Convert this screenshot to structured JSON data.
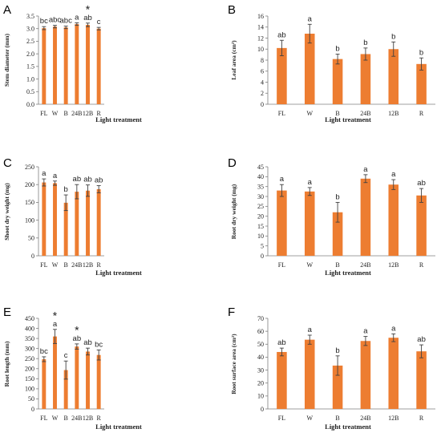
{
  "colors": {
    "bar": "#ED7D31",
    "axis": "#7F7F7F",
    "error": "#404040"
  },
  "chart_data": [
    {
      "type": "bar",
      "panel": "A",
      "categories": [
        "FL",
        "W",
        "B",
        "24B",
        "12B",
        "R"
      ],
      "values": [
        3.02,
        3.08,
        3.05,
        3.18,
        3.15,
        3.0
      ],
      "errors": [
        0.06,
        0.05,
        0.05,
        0.05,
        0.07,
        0.05
      ],
      "sig_letters": [
        "bc",
        "abc",
        "abc",
        "a",
        "ab",
        "c"
      ],
      "stars": [
        false,
        false,
        false,
        false,
        true,
        false
      ],
      "xlabel": "Light treatment",
      "ylabel": "Stem diameter (mm)",
      "ylim": [
        0,
        3.5
      ],
      "yticks": [
        "0.0",
        "0.5",
        "1.0",
        "1.5",
        "2.0",
        "2.5",
        "3.0",
        "3.5"
      ]
    },
    {
      "type": "bar",
      "panel": "B",
      "categories": [
        "FL",
        "W",
        "B",
        "24B",
        "12B",
        "R"
      ],
      "values": [
        10.2,
        12.8,
        8.2,
        9.1,
        10.0,
        7.3
      ],
      "errors": [
        1.4,
        1.7,
        0.9,
        1.1,
        1.3,
        1.1
      ],
      "sig_letters": [
        "ab",
        "a",
        "b",
        "b",
        "b",
        "b"
      ],
      "stars": [
        false,
        false,
        false,
        false,
        false,
        false
      ],
      "xlabel": "Light treatment",
      "ylabel": "Leaf area (cm²)",
      "ylim": [
        0,
        16
      ],
      "yticks": [
        "0",
        "2",
        "4",
        "6",
        "8",
        "10",
        "12",
        "14",
        "16"
      ]
    },
    {
      "type": "bar",
      "panel": "C",
      "categories": [
        "FL",
        "W",
        "B",
        "24B",
        "12B",
        "R"
      ],
      "values": [
        206,
        204,
        149,
        180,
        183,
        187
      ],
      "errors": [
        10,
        6,
        22,
        20,
        16,
        10
      ],
      "sig_letters": [
        "a",
        "a",
        "b",
        "ab",
        "ab",
        "ab"
      ],
      "stars": [
        false,
        false,
        false,
        false,
        false,
        false
      ],
      "xlabel": "Light treatment",
      "ylabel": "Shoot dry weight (mg)",
      "ylim": [
        0,
        250
      ],
      "yticks": [
        "0",
        "50",
        "100",
        "150",
        "200",
        "250"
      ]
    },
    {
      "type": "bar",
      "panel": "D",
      "categories": [
        "FL",
        "W",
        "B",
        "24B",
        "12B",
        "R"
      ],
      "values": [
        33,
        32.5,
        22,
        39,
        36,
        30.5
      ],
      "errors": [
        3,
        2,
        5,
        2,
        2.5,
        3.5
      ],
      "sig_letters": [
        "a",
        "a",
        "b",
        "a",
        "a",
        "ab"
      ],
      "stars": [
        false,
        false,
        false,
        false,
        false,
        false
      ],
      "xlabel": "Light treatment",
      "ylabel": "Root dry weight (mg)",
      "ylim": [
        0,
        45
      ],
      "yticks": [
        "0",
        "5",
        "10",
        "15",
        "20",
        "25",
        "30",
        "35",
        "40",
        "45"
      ]
    },
    {
      "type": "bar",
      "panel": "E",
      "categories": [
        "FL",
        "W",
        "B",
        "24B",
        "12B",
        "R"
      ],
      "values": [
        247,
        360,
        193,
        310,
        285,
        268
      ],
      "errors": [
        12,
        35,
        45,
        13,
        17,
        25
      ],
      "sig_letters": [
        "bc",
        "a",
        "c",
        "ab",
        "ab",
        "bc"
      ],
      "stars": [
        false,
        true,
        false,
        true,
        false,
        false
      ],
      "xlabel": "Light treatment",
      "ylabel": "Root length (mm)",
      "ylim": [
        0,
        450
      ],
      "yticks": [
        "0",
        "50",
        "100",
        "150",
        "200",
        "250",
        "300",
        "350",
        "400",
        "450"
      ]
    },
    {
      "type": "bar",
      "panel": "F",
      "categories": [
        "FL",
        "W",
        "B",
        "24B",
        "12B",
        "R"
      ],
      "values": [
        44,
        53.5,
        33.5,
        52.5,
        55,
        44.5
      ],
      "errors": [
        3,
        3.5,
        7.5,
        3.5,
        3,
        5
      ],
      "sig_letters": [
        "ab",
        "a",
        "b",
        "a",
        "a",
        "ab"
      ],
      "stars": [
        false,
        false,
        false,
        false,
        false,
        false
      ],
      "xlabel": "Light treatment",
      "ylabel": "Root surface area (cm²)",
      "ylim": [
        0,
        70
      ],
      "yticks": [
        "0",
        "10",
        "20",
        "30",
        "40",
        "50",
        "60",
        "70"
      ]
    }
  ]
}
